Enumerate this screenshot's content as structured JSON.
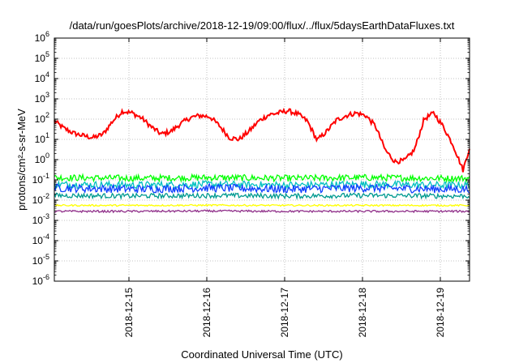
{
  "chart_data": {
    "type": "line",
    "title": "/data/run/goesPlots/archive/2018-12-19/09:00/flux/../flux/5daysEarthDataFluxes.txt",
    "xlabel": "Coordinated Universal Time (UTC)",
    "ylabel": "protons/cm²-s-sr-MeV",
    "y_scale": "log",
    "ylim": [
      1e-06,
      1000000.0
    ],
    "xlim": [
      "2018-12-14 01:00",
      "2018-12-19 09:00"
    ],
    "grid": true,
    "legend": "none",
    "x_tick_labels": [
      "2018-12-15",
      "2018-12-16",
      "2018-12-17",
      "2018-12-18",
      "2018-12-19"
    ],
    "y_tick_labels": [
      {
        "base": "10",
        "exp": "6",
        "value": 1000000.0
      },
      {
        "base": "10",
        "exp": "5",
        "value": 100000.0
      },
      {
        "base": "10",
        "exp": "4",
        "value": 10000.0
      },
      {
        "base": "10",
        "exp": "3",
        "value": 1000.0
      },
      {
        "base": "10",
        "exp": "2",
        "value": 100.0
      },
      {
        "base": "10",
        "exp": "1",
        "value": 10.0
      },
      {
        "base": "10",
        "exp": "0",
        "value": 1
      },
      {
        "base": "10",
        "exp": "-1",
        "value": 0.1
      },
      {
        "base": "10",
        "exp": "-2",
        "value": 0.01
      },
      {
        "base": "10",
        "exp": "-3",
        "value": 0.001
      },
      {
        "base": "10",
        "exp": "-4",
        "value": 0.0001
      },
      {
        "base": "10",
        "exp": "-5",
        "value": 1e-05
      },
      {
        "base": "10",
        "exp": "-6",
        "value": 1e-06
      }
    ],
    "series": [
      {
        "color": "#ff0000",
        "x": [
          "2018-12-14 01:00",
          "2018-12-14 04:00",
          "2018-12-14 07:00",
          "2018-12-14 10:00",
          "2018-12-14 13:00",
          "2018-12-14 16:00",
          "2018-12-14 19:00",
          "2018-12-14 22:00",
          "2018-12-15 01:00",
          "2018-12-15 04:00",
          "2018-12-15 07:00",
          "2018-12-15 10:00",
          "2018-12-15 13:00",
          "2018-12-15 16:00",
          "2018-12-15 19:00",
          "2018-12-15 22:00",
          "2018-12-16 01:00",
          "2018-12-16 04:00",
          "2018-12-16 07:00",
          "2018-12-16 10:00",
          "2018-12-16 13:00",
          "2018-12-16 16:00",
          "2018-12-16 19:00",
          "2018-12-16 22:00",
          "2018-12-17 01:00",
          "2018-12-17 04:00",
          "2018-12-17 07:00",
          "2018-12-17 10:00",
          "2018-12-17 13:00",
          "2018-12-17 16:00",
          "2018-12-17 19:00",
          "2018-12-17 22:00",
          "2018-12-18 01:00",
          "2018-12-18 04:00",
          "2018-12-18 07:00",
          "2018-12-18 10:00",
          "2018-12-18 13:00",
          "2018-12-18 16:00",
          "2018-12-18 19:00",
          "2018-12-18 22:00",
          "2018-12-19 01:00",
          "2018-12-19 04:00",
          "2018-12-19 07:00",
          "2018-12-19 09:00"
        ],
        "values": [
          80,
          35,
          20,
          15,
          12,
          18,
          80,
          250,
          200,
          110,
          40,
          18,
          25,
          60,
          120,
          150,
          130,
          45,
          12,
          10,
          25,
          80,
          160,
          200,
          260,
          180,
          80,
          9,
          25,
          90,
          150,
          200,
          150,
          45,
          3,
          0.8,
          0.9,
          3,
          100,
          200,
          40,
          5,
          0.3,
          4
        ]
      },
      {
        "color": "#00ff00",
        "x": [
          "2018-12-14 01:00",
          "2018-12-15 01:00",
          "2018-12-16 01:00",
          "2018-12-17 01:00",
          "2018-12-18 01:00",
          "2018-12-19 01:00",
          "2018-12-19 09:00"
        ],
        "values": [
          0.13,
          0.12,
          0.13,
          0.12,
          0.13,
          0.12,
          0.12
        ]
      },
      {
        "color": "#00c0c0",
        "x": [
          "2018-12-14 01:00",
          "2018-12-15 01:00",
          "2018-12-16 01:00",
          "2018-12-17 01:00",
          "2018-12-18 01:00",
          "2018-12-19 01:00",
          "2018-12-19 09:00"
        ],
        "values": [
          0.06,
          0.055,
          0.06,
          0.055,
          0.06,
          0.055,
          0.055
        ]
      },
      {
        "color": "#1040ff",
        "x": [
          "2018-12-14 01:00",
          "2018-12-15 01:00",
          "2018-12-16 01:00",
          "2018-12-17 01:00",
          "2018-12-18 01:00",
          "2018-12-19 01:00",
          "2018-12-19 09:00"
        ],
        "values": [
          0.04,
          0.035,
          0.04,
          0.035,
          0.04,
          0.035,
          0.035
        ]
      },
      {
        "color": "#009a90",
        "x": [
          "2018-12-14 01:00",
          "2018-12-15 01:00",
          "2018-12-16 01:00",
          "2018-12-17 01:00",
          "2018-12-18 01:00",
          "2018-12-19 01:00",
          "2018-12-19 09:00"
        ],
        "values": [
          0.017,
          0.016,
          0.017,
          0.016,
          0.017,
          0.016,
          0.016
        ]
      },
      {
        "color": "#ffff00",
        "x": [
          "2018-12-14 01:00",
          "2018-12-15 01:00",
          "2018-12-16 01:00",
          "2018-12-17 01:00",
          "2018-12-18 01:00",
          "2018-12-19 01:00",
          "2018-12-19 09:00"
        ],
        "values": [
          0.0055,
          0.0055,
          0.0056,
          0.0055,
          0.0055,
          0.0055,
          0.0055
        ]
      },
      {
        "color": "#90308a",
        "x": [
          "2018-12-14 01:00",
          "2018-12-15 01:00",
          "2018-12-16 01:00",
          "2018-12-17 01:00",
          "2018-12-18 01:00",
          "2018-12-19 01:00",
          "2018-12-19 09:00"
        ],
        "values": [
          0.0028,
          0.0028,
          0.0029,
          0.0028,
          0.0028,
          0.0028,
          0.0028
        ]
      }
    ]
  }
}
